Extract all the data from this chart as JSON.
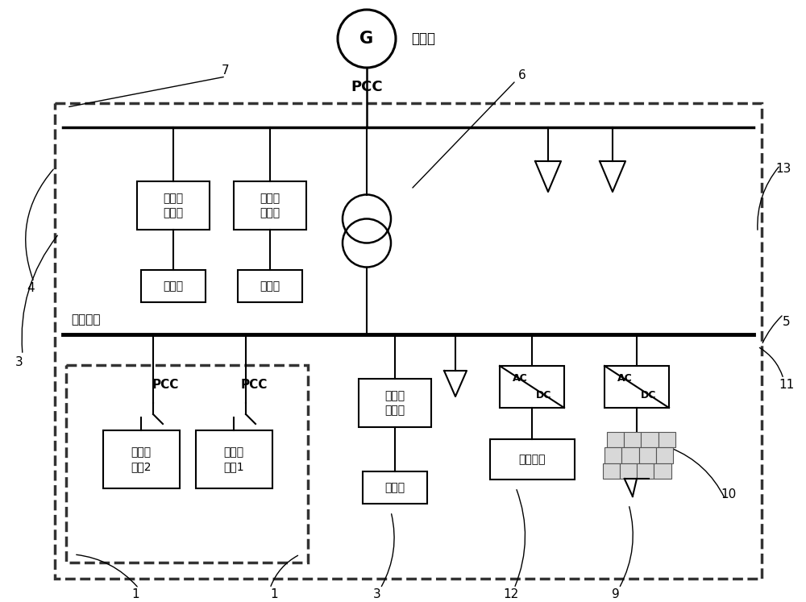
{
  "bg_color": "#ffffff",
  "line_color": "#000000",
  "labels": {
    "G": "G",
    "grid_text": "配电网",
    "ac_bus": "交流母线",
    "pcc": "PCC",
    "pei": "电力电\n子接口",
    "cp": "充电桩",
    "nested1": "嵌套微\n电网1",
    "nested2": "嵌套微\n电网2",
    "storage": "储能系统",
    "AC": "AC",
    "DC": "DC"
  },
  "numbers": [
    "1",
    "1",
    "3",
    "3",
    "4",
    "5",
    "6",
    "7",
    "9",
    "10",
    "11",
    "12",
    "13"
  ]
}
